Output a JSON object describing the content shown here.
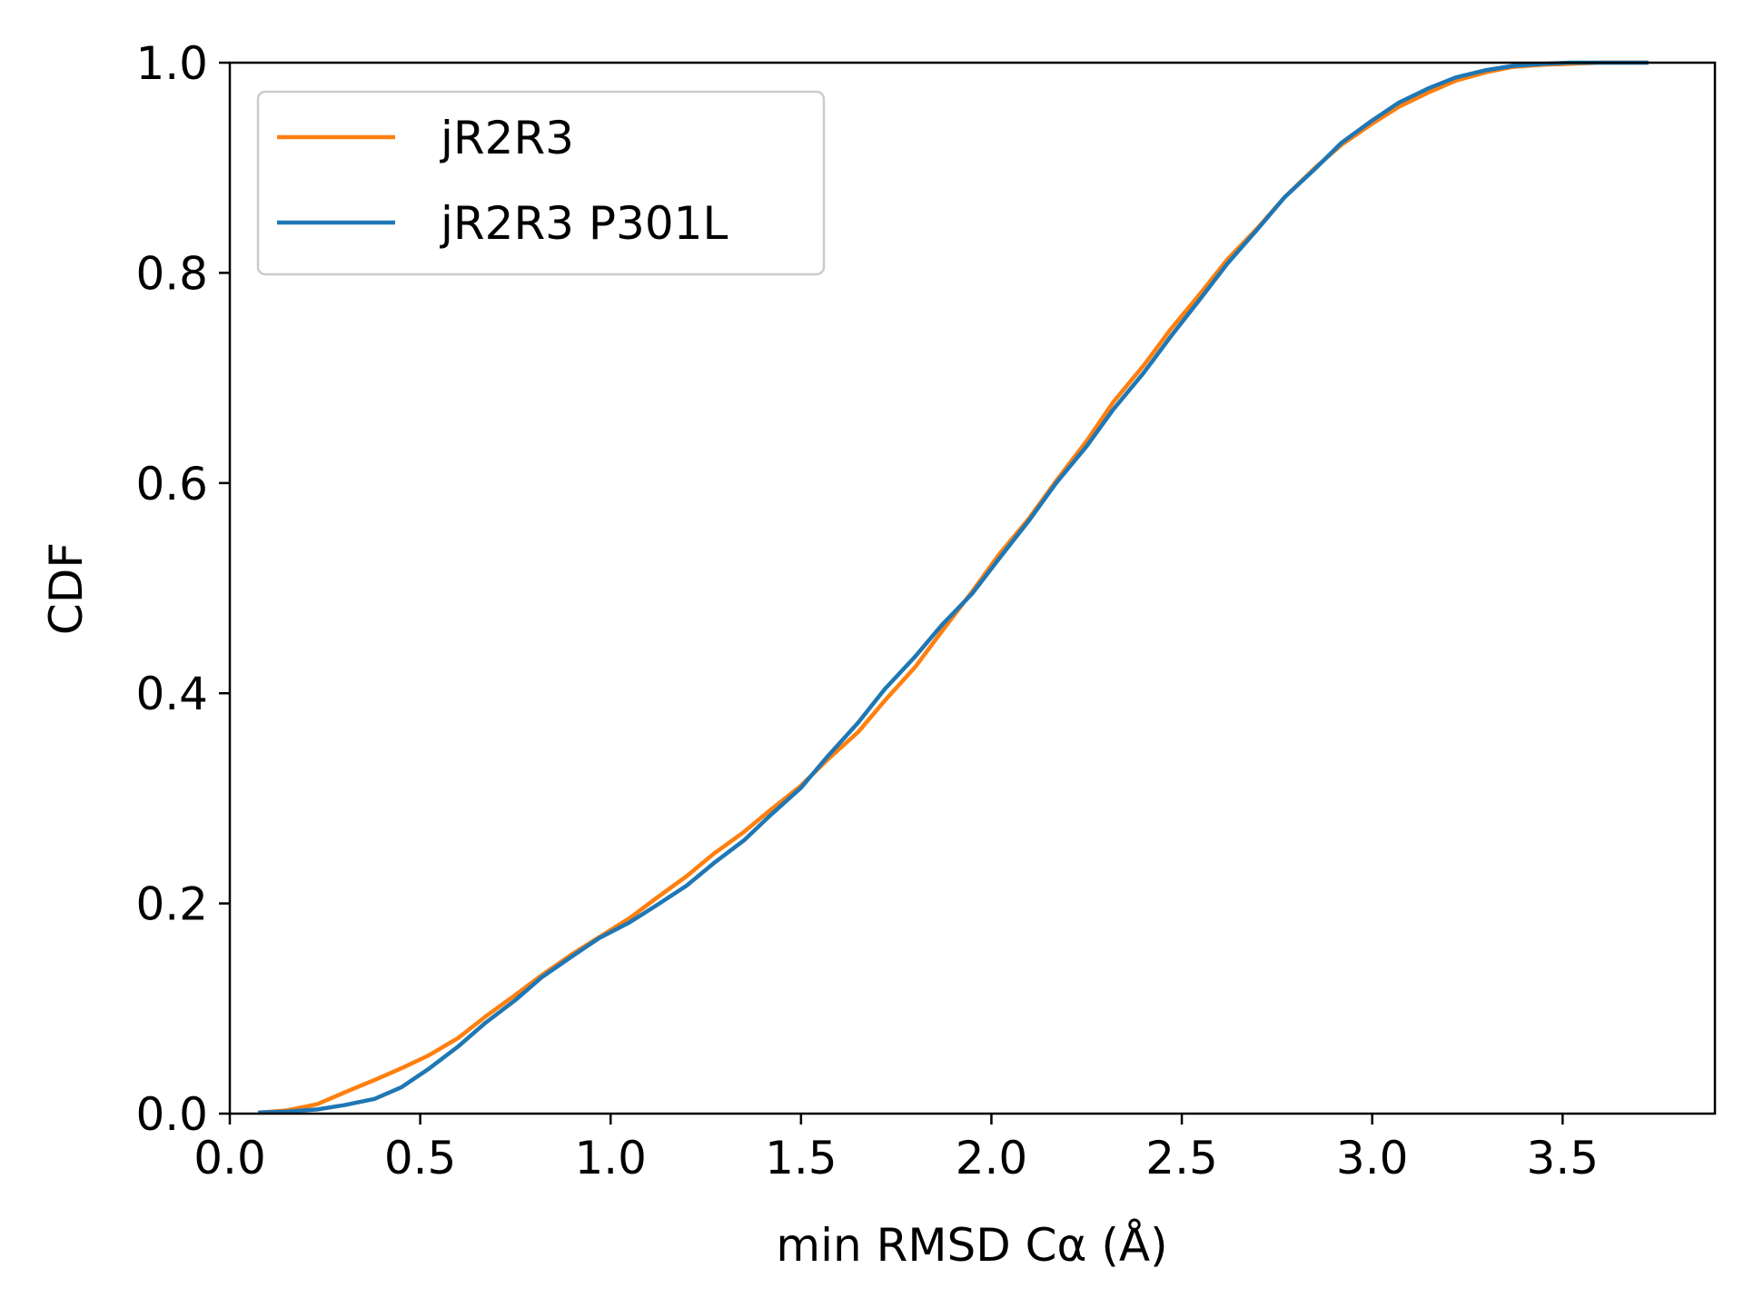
{
  "chart_data": {
    "type": "line",
    "title": "",
    "xlabel": "min RMSD Cα (Å)",
    "ylabel": "CDF",
    "xlim": [
      0.0,
      3.9
    ],
    "ylim": [
      0.0,
      1.0
    ],
    "xticks": [
      0.0,
      0.5,
      1.0,
      1.5,
      2.0,
      2.5,
      3.0,
      3.5
    ],
    "xtick_labels": [
      "0.0",
      "0.5",
      "1.0",
      "1.5",
      "2.0",
      "2.5",
      "3.0",
      "3.5"
    ],
    "yticks": [
      0.0,
      0.2,
      0.4,
      0.6,
      0.8,
      1.0
    ],
    "ytick_labels": [
      "0.0",
      "0.2",
      "0.4",
      "0.6",
      "0.8",
      "1.0"
    ],
    "grid": false,
    "legend_position": "upper-left",
    "series": [
      {
        "name": "jR2R3",
        "color": "#ff7f0e",
        "x": [
          0.08,
          0.15,
          0.23,
          0.3,
          0.38,
          0.45,
          0.52,
          0.6,
          0.67,
          0.75,
          0.82,
          0.9,
          0.97,
          1.05,
          1.12,
          1.2,
          1.27,
          1.35,
          1.42,
          1.5,
          1.57,
          1.65,
          1.72,
          1.8,
          1.87,
          1.95,
          2.02,
          2.1,
          2.17,
          2.25,
          2.32,
          2.4,
          2.47,
          2.55,
          2.62,
          2.7,
          2.77,
          2.85,
          2.92,
          3.0,
          3.07,
          3.15,
          3.22,
          3.3,
          3.37,
          3.45,
          3.52,
          3.6,
          3.72
        ],
        "y": [
          0.001,
          0.003,
          0.009,
          0.02,
          0.032,
          0.043,
          0.055,
          0.072,
          0.092,
          0.113,
          0.132,
          0.152,
          0.168,
          0.186,
          0.205,
          0.226,
          0.247,
          0.268,
          0.289,
          0.312,
          0.337,
          0.363,
          0.393,
          0.425,
          0.459,
          0.497,
          0.532,
          0.567,
          0.602,
          0.64,
          0.677,
          0.712,
          0.746,
          0.781,
          0.813,
          0.843,
          0.872,
          0.9,
          0.922,
          0.942,
          0.958,
          0.972,
          0.983,
          0.991,
          0.996,
          0.998,
          0.999,
          1.0,
          1.0
        ]
      },
      {
        "name": "jR2R3 P301L",
        "color": "#1f77b4",
        "x": [
          0.08,
          0.15,
          0.23,
          0.3,
          0.38,
          0.45,
          0.52,
          0.6,
          0.67,
          0.75,
          0.82,
          0.9,
          0.97,
          1.05,
          1.12,
          1.2,
          1.27,
          1.35,
          1.42,
          1.5,
          1.57,
          1.65,
          1.72,
          1.8,
          1.87,
          1.95,
          2.02,
          2.1,
          2.17,
          2.25,
          2.32,
          2.4,
          2.47,
          2.55,
          2.62,
          2.7,
          2.77,
          2.85,
          2.92,
          3.0,
          3.07,
          3.15,
          3.22,
          3.3,
          3.37,
          3.45,
          3.52,
          3.6,
          3.72
        ],
        "y": [
          0.001,
          0.002,
          0.004,
          0.008,
          0.014,
          0.025,
          0.042,
          0.064,
          0.086,
          0.108,
          0.13,
          0.15,
          0.167,
          0.182,
          0.198,
          0.217,
          0.238,
          0.26,
          0.284,
          0.31,
          0.34,
          0.372,
          0.404,
          0.435,
          0.465,
          0.495,
          0.528,
          0.565,
          0.6,
          0.635,
          0.67,
          0.705,
          0.739,
          0.776,
          0.809,
          0.842,
          0.872,
          0.899,
          0.924,
          0.945,
          0.962,
          0.976,
          0.986,
          0.993,
          0.997,
          0.999,
          1.0,
          1.0,
          1.0
        ]
      }
    ]
  }
}
